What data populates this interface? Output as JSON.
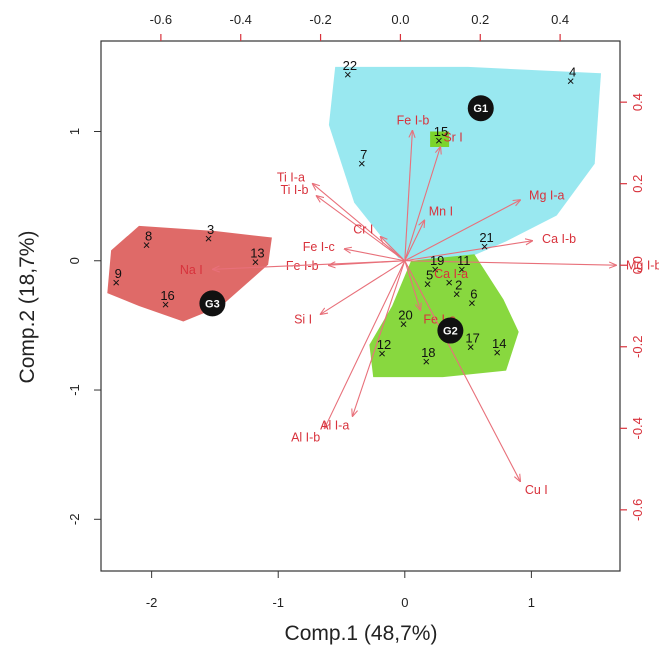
{
  "chart_data": {
    "type": "scatter",
    "subtype": "pca-biplot",
    "xlabel": "Comp.1 (48,7%)",
    "ylabel": "Comp.2 (18,7%)",
    "xlim": [
      -2.4,
      1.7
    ],
    "ylim": [
      -2.4,
      1.7
    ],
    "x_ticks": [
      "-2",
      "-1",
      "0",
      "1"
    ],
    "y_ticks": [
      "-2",
      "-1",
      "0",
      "1"
    ],
    "top_ticks": [
      "-0.6",
      "-0.4",
      "-0.2",
      "0.0",
      "0.2",
      "0.4"
    ],
    "right_ticks": [
      "-0.6",
      "-0.4",
      "-0.2",
      "0.0",
      "0.2",
      "0.4"
    ],
    "loading_lim": [
      -0.75,
      0.55
    ],
    "colors": {
      "axis": "#333333",
      "red_axis": "#d8323c",
      "arrow": "#e8707a",
      "G1": "#8ee6ee",
      "G2": "#7bd42a",
      "G3": "#dc5a58",
      "group_marker": "#111111"
    },
    "observations": [
      {
        "label": "22",
        "x": -0.45,
        "y": 1.43
      },
      {
        "label": "4",
        "x": 1.31,
        "y": 1.38
      },
      {
        "label": "15",
        "x": 0.27,
        "y": 0.92
      },
      {
        "label": "7",
        "x": -0.34,
        "y": 0.74
      },
      {
        "label": "8",
        "x": -2.04,
        "y": 0.11
      },
      {
        "label": "3",
        "x": -1.55,
        "y": 0.16
      },
      {
        "label": "13",
        "x": -1.18,
        "y": -0.02
      },
      {
        "label": "9",
        "x": -2.28,
        "y": -0.18
      },
      {
        "label": "16",
        "x": -1.89,
        "y": -0.35
      },
      {
        "label": "21",
        "x": 0.63,
        "y": 0.1
      },
      {
        "label": "19",
        "x": 0.24,
        "y": -0.08
      },
      {
        "label": "11",
        "x": 0.45,
        "y": -0.08
      },
      {
        "label": "5",
        "x": 0.18,
        "y": -0.19
      },
      {
        "label": "Ca I-a",
        "x": 0.35,
        "y": -0.18
      },
      {
        "label": "2",
        "x": 0.41,
        "y": -0.27
      },
      {
        "label": "6",
        "x": 0.53,
        "y": -0.34
      },
      {
        "label": "20",
        "x": -0.01,
        "y": -0.5
      },
      {
        "label": "17",
        "x": 0.52,
        "y": -0.68
      },
      {
        "label": "14",
        "x": 0.73,
        "y": -0.72
      },
      {
        "label": "12",
        "x": -0.18,
        "y": -0.73
      },
      {
        "label": "18",
        "x": 0.17,
        "y": -0.79
      }
    ],
    "variables": [
      {
        "label": "Fe I-b",
        "x": 0.03,
        "y": 0.33
      },
      {
        "label": "Sr I",
        "x": 0.1,
        "y": 0.29
      },
      {
        "label": "Ti I-a",
        "x": -0.22,
        "y": 0.2
      },
      {
        "label": "Ti I-b",
        "x": -0.21,
        "y": 0.17
      },
      {
        "label": "Mn I",
        "x": 0.06,
        "y": 0.11
      },
      {
        "label": "Mg I-a",
        "x": 0.3,
        "y": 0.16
      },
      {
        "label": "Cr I",
        "x": -0.05,
        "y": 0.07
      },
      {
        "label": "Ca I-b",
        "x": 0.33,
        "y": 0.06
      },
      {
        "label": "Fe I-c",
        "x": -0.14,
        "y": 0.04
      },
      {
        "label": "Fe I-b",
        "x": -0.18,
        "y": 0.0
      },
      {
        "label": "Mg I-b",
        "x": 0.54,
        "y": 0.0
      },
      {
        "label": "Na I",
        "x": -0.47,
        "y": -0.01
      },
      {
        "label": "Si I",
        "x": -0.2,
        "y": -0.12
      },
      {
        "label": "Fe I-a",
        "x": 0.05,
        "y": -0.11
      },
      {
        "label": "Al I-b",
        "x": -0.19,
        "y": -0.4
      },
      {
        "label": "Al I-a",
        "x": -0.12,
        "y": -0.37
      },
      {
        "label": "Cu I",
        "x": 0.3,
        "y": -0.53
      }
    ],
    "groups": [
      {
        "name": "G1",
        "x": 0.6,
        "y": 1.18
      },
      {
        "name": "G2",
        "x": 0.36,
        "y": -0.54
      },
      {
        "name": "G3",
        "x": -1.52,
        "y": -0.33
      }
    ]
  }
}
